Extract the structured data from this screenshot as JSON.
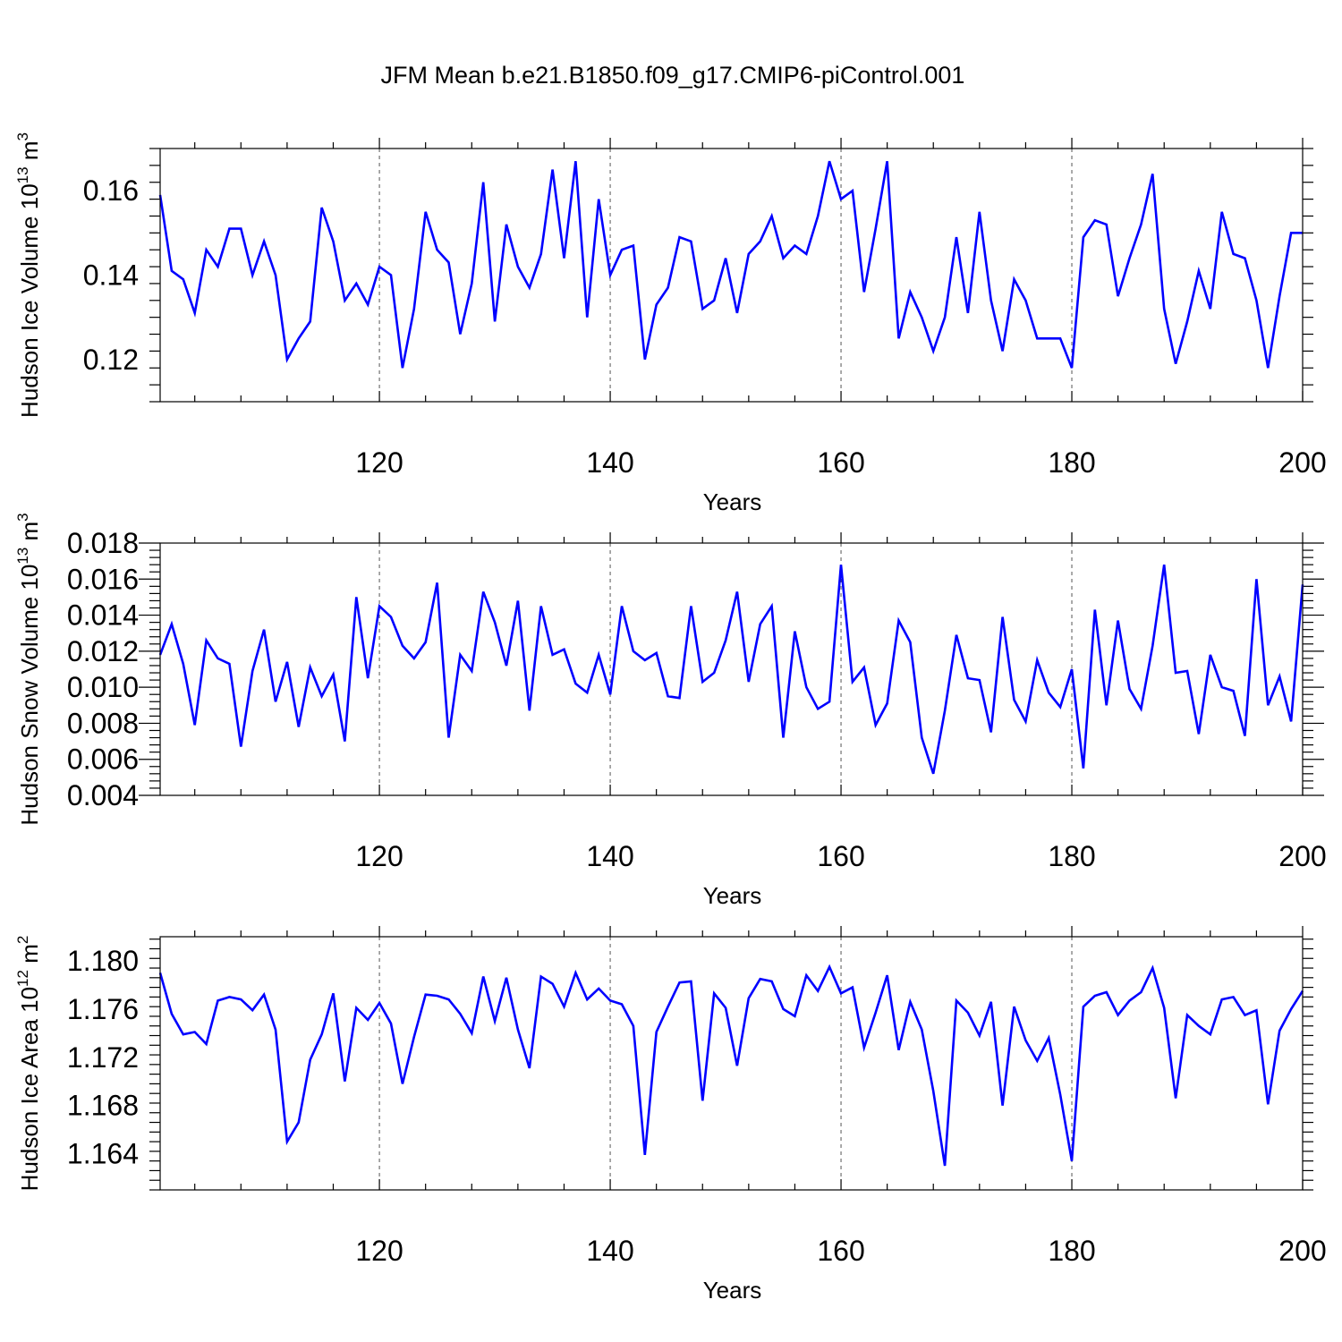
{
  "chart_data": {
    "type": "line",
    "title": "JFM Mean b.e21.B1850.f09_g17.CMIP6-piControl.001",
    "line_color": "#0000ff",
    "x_start": 101,
    "panels": [
      {
        "id": "ice-volume",
        "ylabel": "Hudson Ice Volume 10",
        "ylabel_exp": "13",
        "ylabel_unit": " m",
        "ylabel_unit_exp": "3",
        "xlabel": "Years",
        "xlim": [
          101,
          200
        ],
        "ylim": [
          0.11,
          0.17
        ],
        "yticks": [
          0.12,
          0.14,
          0.16
        ],
        "ytick_labels": [
          "0.12",
          "0.14",
          "0.16"
        ],
        "xticks": [
          120,
          140,
          160,
          180,
          200
        ],
        "xtick_labels": [
          "120",
          "140",
          "160",
          "180",
          "200"
        ],
        "grid_x": [
          120,
          140,
          160,
          180
        ],
        "values": [
          0.159,
          0.141,
          0.139,
          0.131,
          0.146,
          0.142,
          0.151,
          0.151,
          0.14,
          0.148,
          0.14,
          0.12,
          0.125,
          0.129,
          0.156,
          0.148,
          0.134,
          0.138,
          0.133,
          0.142,
          0.14,
          0.118,
          0.132,
          0.155,
          0.146,
          0.143,
          0.126,
          0.138,
          0.162,
          0.129,
          0.152,
          0.142,
          0.137,
          0.145,
          0.165,
          0.144,
          0.167,
          0.13,
          0.158,
          0.14,
          0.146,
          0.147,
          0.12,
          0.133,
          0.137,
          0.149,
          0.148,
          0.132,
          0.134,
          0.144,
          0.131,
          0.145,
          0.148,
          0.154,
          0.144,
          0.147,
          0.145,
          0.154,
          0.167,
          0.158,
          0.16,
          0.136,
          0.151,
          0.167,
          0.125,
          0.136,
          0.13,
          0.122,
          0.13,
          0.149,
          0.131,
          0.155,
          0.134,
          0.122,
          0.139,
          0.134,
          0.125,
          0.125,
          0.125,
          0.118,
          0.149,
          0.153,
          0.152,
          0.135,
          0.144,
          0.152,
          0.164,
          0.132,
          0.119,
          0.129,
          0.141,
          0.132,
          0.155,
          0.145,
          0.144,
          0.134,
          0.118,
          0.135,
          0.15,
          0.15
        ]
      },
      {
        "id": "snow-volume",
        "ylabel": "Hudson Snow Volume 10",
        "ylabel_exp": "13",
        "ylabel_unit": " m",
        "ylabel_unit_exp": "3",
        "xlabel": "Years",
        "xlim": [
          101,
          200
        ],
        "ylim": [
          0.004,
          0.018
        ],
        "yticks": [
          0.004,
          0.006,
          0.008,
          0.01,
          0.012,
          0.014,
          0.016,
          0.018
        ],
        "ytick_labels": [
          "0.004",
          "0.006",
          "0.008",
          "0.010",
          "0.012",
          "0.014",
          "0.016",
          "0.018"
        ],
        "xticks": [
          120,
          140,
          160,
          180,
          200
        ],
        "xtick_labels": [
          "120",
          "140",
          "160",
          "180",
          "200"
        ],
        "grid_x": [
          120,
          140,
          160,
          180
        ],
        "values": [
          0.0118,
          0.0135,
          0.0113,
          0.0079,
          0.0126,
          0.0116,
          0.0113,
          0.0067,
          0.0109,
          0.0132,
          0.0092,
          0.0114,
          0.0078,
          0.0111,
          0.0095,
          0.0107,
          0.007,
          0.015,
          0.0105,
          0.0145,
          0.0139,
          0.0123,
          0.0116,
          0.0125,
          0.0158,
          0.0072,
          0.0118,
          0.0109,
          0.0153,
          0.0136,
          0.0112,
          0.0148,
          0.0087,
          0.0145,
          0.0118,
          0.0121,
          0.0102,
          0.0097,
          0.0118,
          0.0096,
          0.0145,
          0.012,
          0.0115,
          0.0119,
          0.0095,
          0.0094,
          0.0145,
          0.0103,
          0.0108,
          0.0126,
          0.0153,
          0.0103,
          0.0135,
          0.0145,
          0.0072,
          0.0131,
          0.01,
          0.0088,
          0.0092,
          0.0168,
          0.0103,
          0.0111,
          0.0079,
          0.0091,
          0.0137,
          0.0125,
          0.0072,
          0.0052,
          0.0087,
          0.0129,
          0.0105,
          0.0104,
          0.0075,
          0.0139,
          0.0093,
          0.0081,
          0.0115,
          0.0097,
          0.0089,
          0.011,
          0.0055,
          0.0143,
          0.009,
          0.0137,
          0.0099,
          0.0088,
          0.0123,
          0.0168,
          0.0108,
          0.0109,
          0.0074,
          0.0118,
          0.01,
          0.0098,
          0.0073,
          0.016,
          0.009,
          0.0106,
          0.0081,
          0.0157
        ]
      },
      {
        "id": "ice-area",
        "ylabel": "Hudson Ice Area 10",
        "ylabel_exp": "12",
        "ylabel_unit": " m",
        "ylabel_unit_exp": "2",
        "xlabel": "Years",
        "xlim": [
          101,
          200
        ],
        "ylim": [
          1.161,
          1.182
        ],
        "yticks": [
          1.164,
          1.168,
          1.172,
          1.176,
          1.18
        ],
        "ytick_labels": [
          "1.164",
          "1.168",
          "1.172",
          "1.176",
          "1.180"
        ],
        "xticks": [
          120,
          140,
          160,
          180,
          200
        ],
        "xtick_labels": [
          "120",
          "140",
          "160",
          "180",
          "200"
        ],
        "grid_x": [
          120,
          140,
          160,
          180
        ],
        "values": [
          1.179,
          1.1756,
          1.1739,
          1.1741,
          1.1731,
          1.1767,
          1.177,
          1.1768,
          1.1759,
          1.1772,
          1.1743,
          1.165,
          1.1666,
          1.1718,
          1.1739,
          1.1773,
          1.17,
          1.1761,
          1.1751,
          1.1765,
          1.1748,
          1.1698,
          1.1737,
          1.1772,
          1.1771,
          1.1768,
          1.1756,
          1.174,
          1.1787,
          1.175,
          1.1786,
          1.1743,
          1.1711,
          1.1787,
          1.1781,
          1.1762,
          1.179,
          1.1768,
          1.1777,
          1.1767,
          1.1764,
          1.1746,
          1.1639,
          1.1741,
          1.1762,
          1.1782,
          1.1783,
          1.1684,
          1.1773,
          1.1761,
          1.1713,
          1.1769,
          1.1785,
          1.1783,
          1.176,
          1.1754,
          1.1788,
          1.1775,
          1.1795,
          1.1773,
          1.1778,
          1.1728,
          1.1757,
          1.1788,
          1.1726,
          1.1766,
          1.1743,
          1.1692,
          1.163,
          1.1767,
          1.1757,
          1.1738,
          1.1766,
          1.168,
          1.1762,
          1.1734,
          1.1717,
          1.1736,
          1.1689,
          1.1634,
          1.1762,
          1.1771,
          1.1774,
          1.1755,
          1.1767,
          1.1774,
          1.1794,
          1.1761,
          1.1686,
          1.1755,
          1.1746,
          1.1739,
          1.1768,
          1.177,
          1.1755,
          1.1759,
          1.1681,
          1.1742,
          1.176,
          1.1775
        ]
      }
    ]
  }
}
